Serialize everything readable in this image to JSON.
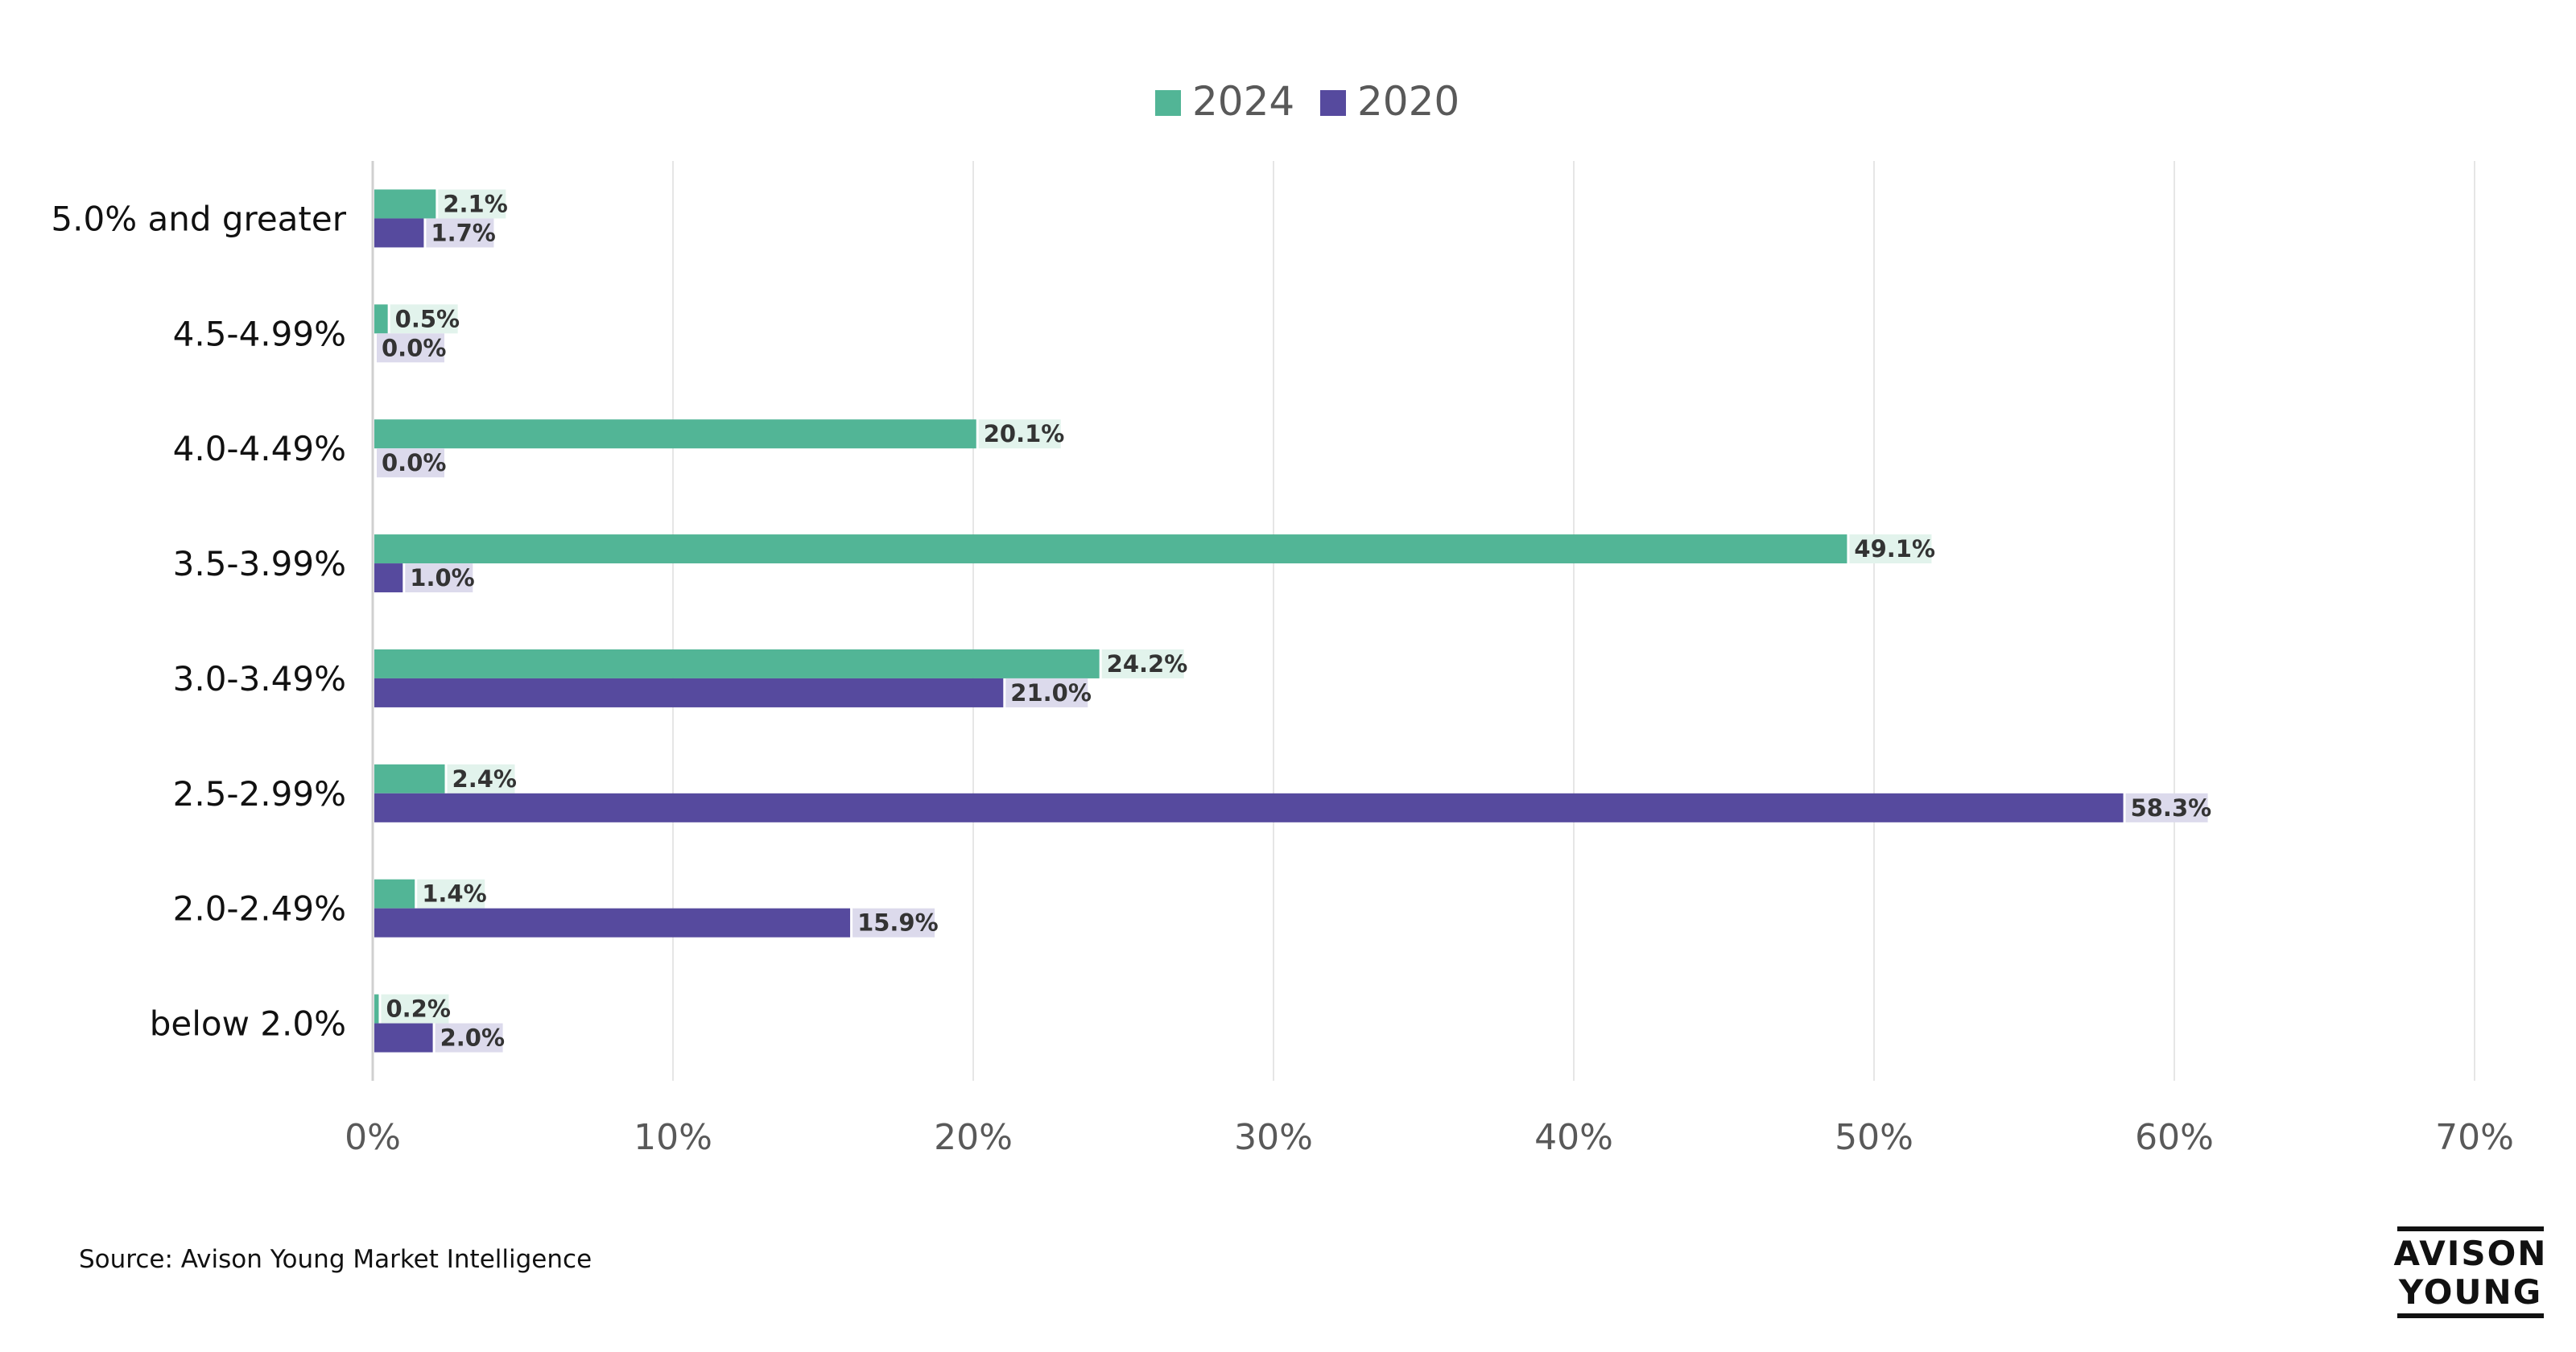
{
  "chart_data": {
    "type": "bar",
    "orientation": "horizontal",
    "categories": [
      "5.0% and greater",
      "4.5-4.99%",
      "4.0-4.49%",
      "3.5-3.99%",
      "3.0-3.49%",
      "2.5-2.99%",
      "2.0-2.49%",
      "below 2.0%"
    ],
    "series": [
      {
        "name": "2024",
        "color": "#52b596",
        "label_bg": "#e2f3ec",
        "values": [
          2.1,
          0.5,
          20.1,
          49.1,
          24.2,
          2.4,
          1.4,
          0.2
        ]
      },
      {
        "name": "2020",
        "color": "#564a9e",
        "label_bg": "#dcdaec",
        "values": [
          1.7,
          0.0,
          0.0,
          1.0,
          21.0,
          58.3,
          15.9,
          2.0
        ]
      }
    ],
    "data_labels": [
      [
        "2.1%",
        "0.5%",
        "20.1%",
        "49.1%",
        "24.2%",
        "2.4%",
        "1.4%",
        "0.2%"
      ],
      [
        "1.7%",
        "0.0%",
        "0.0%",
        "1.0%",
        "21.0%",
        "58.3%",
        "15.9%",
        "2.0%"
      ]
    ],
    "x_ticks": [
      "0%",
      "10%",
      "20%",
      "30%",
      "40%",
      "50%",
      "60%",
      "70%"
    ],
    "xlim": [
      0,
      70
    ],
    "grid": "vertical",
    "legend_position": "top-center"
  },
  "source_text": "Source: Avison Young Market Intelligence",
  "logo": {
    "line1": "AVISON",
    "line2": "YOUNG"
  }
}
